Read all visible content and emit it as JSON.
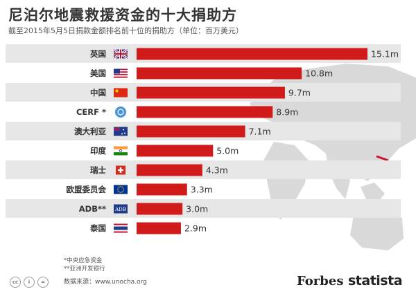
{
  "title": "尼泊尔地震救援资金的十大捐助方",
  "subtitle": "截至2015年5月5日捐款金额排名前十位的捐助方（单位：百万美元）",
  "notes": [
    "*中央应急资金",
    "**亚洲开发银行"
  ],
  "source": "数据来源：www.unocha.org",
  "brands": {
    "forbes": "Forbes",
    "statista": "statista"
  },
  "colors": {
    "bar": "#d11b1b",
    "stripe": "#e6e6e6",
    "map": "#d7d7d7"
  },
  "chart_data": {
    "type": "bar",
    "orientation": "horizontal",
    "categories": [
      "英国",
      "美国",
      "中国",
      "CERF *",
      "澳大利亚",
      "印度",
      "瑞士",
      "欧盟委员会",
      "ADB**",
      "泰国"
    ],
    "flags": [
      "uk",
      "us",
      "cn",
      "un",
      "au",
      "in",
      "ch",
      "eu",
      "adb",
      "th"
    ],
    "values": [
      15.1,
      10.8,
      9.7,
      8.9,
      7.1,
      5.0,
      4.3,
      3.3,
      3.0,
      2.9
    ],
    "value_labels": [
      "15.1m",
      "10.8m",
      "9.7m",
      "8.9m",
      "7.1m",
      "5.0m",
      "4.3m",
      "3.3m",
      "3.0m",
      "2.9m"
    ],
    "xlim": [
      0,
      15.1
    ]
  }
}
